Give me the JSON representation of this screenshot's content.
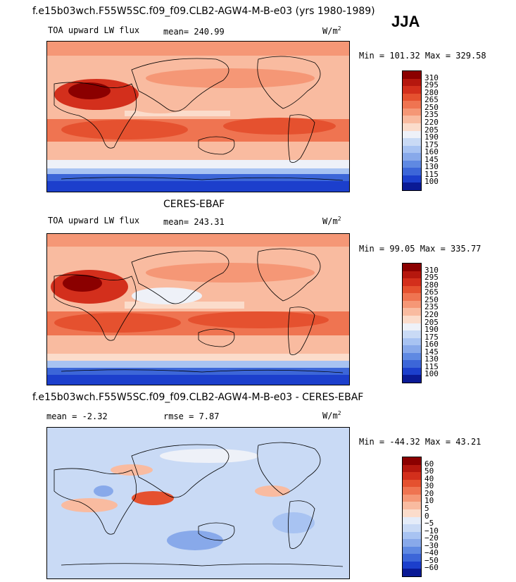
{
  "season": "JJA",
  "panels": [
    {
      "id": "model",
      "title": "f.e15b03wch.F55W5SC.f09_f09.CLB2-AGW4-M-B-e03 (yrs 1980-1989)",
      "variable": "TOA upward LW flux",
      "mean": "mean= 240.99",
      "units_base": "W/m",
      "units_exp": "2",
      "minmax": "Min = 101.32 Max = 329.58"
    },
    {
      "id": "obs",
      "title": "CERES-EBAF",
      "variable": "TOA upward LW flux",
      "mean": "mean= 243.31",
      "units_base": "W/m",
      "units_exp": "2",
      "minmax": "Min =  99.05 Max = 335.77"
    },
    {
      "id": "diff",
      "title": "f.e15b03wch.F55W5SC.f09_f09.CLB2-AGW4-M-B-e03 - CERES-EBAF",
      "mean": "mean =   -2.32",
      "rmse": "rmse =    7.87",
      "units_base": "W/m",
      "units_exp": "2",
      "minmax": "Min = -44.32 Max =  43.21"
    }
  ],
  "colorbars": {
    "flux": {
      "labels": [
        "310",
        "295",
        "280",
        "265",
        "250",
        "235",
        "220",
        "205",
        "190",
        "175",
        "160",
        "145",
        "130",
        "115",
        "100"
      ],
      "colors": [
        "#8b0000",
        "#b5170e",
        "#d32f1c",
        "#e5512f",
        "#ef7451",
        "#f59776",
        "#f9bba0",
        "#fbdccb",
        "#eef1f8",
        "#c9daf5",
        "#a8c3f2",
        "#88a9ea",
        "#5f89e2",
        "#3c66d8",
        "#1c3fcc",
        "#0a1a95"
      ]
    },
    "diff": {
      "labels": [
        "60",
        "50",
        "40",
        "30",
        "20",
        "10",
        "5",
        "0",
        "−5",
        "−10",
        "−20",
        "−30",
        "−40",
        "−50",
        "−60"
      ],
      "colors": [
        "#8b0000",
        "#b5170e",
        "#d32f1c",
        "#e5512f",
        "#ef7451",
        "#f59776",
        "#f9bba0",
        "#fbdccb",
        "#e4ecf9",
        "#c9daf5",
        "#a8c3f2",
        "#88a9ea",
        "#5f89e2",
        "#3c66d8",
        "#1c3fcc",
        "#0a1a95"
      ]
    }
  }
}
